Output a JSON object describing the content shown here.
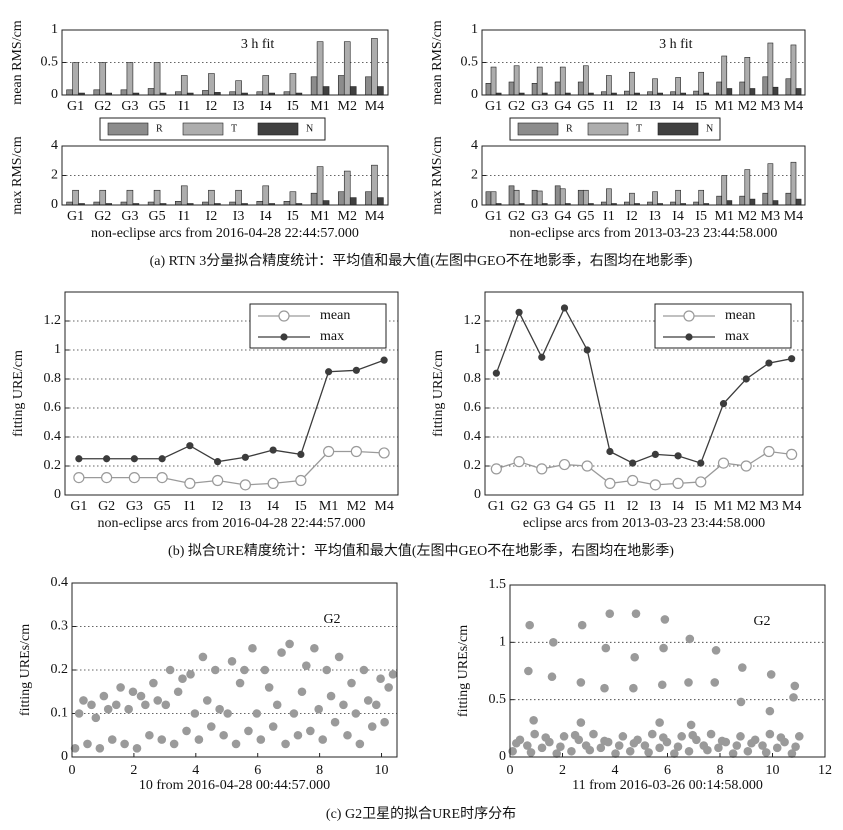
{
  "captions": [
    "(a) RTN 3分量拟合精度统计：平均值和最大值(左图中GEO不在地影季，右图均在地影季)",
    "(b) 拟合URE精度统计：平均值和最大值(左图中GEO不在地影季，右图均在地影季)",
    "(c) G2卫星的拟合URE时序分布"
  ],
  "chart_data": [
    {
      "type": "bar",
      "ylabel": "mean RMS/cm",
      "annotation": "3 h fit",
      "legend": "below",
      "grid": true,
      "categories": [
        "G1",
        "G2",
        "G3",
        "G5",
        "I1",
        "I2",
        "I3",
        "I4",
        "I5",
        "M1",
        "M2",
        "M4"
      ],
      "ylim": [
        0,
        1
      ],
      "yticks": [
        0,
        0.5,
        1
      ],
      "series": [
        {
          "name": "R",
          "color": "#8c8c8c",
          "values": [
            0.08,
            0.08,
            0.08,
            0.1,
            0.05,
            0.07,
            0.05,
            0.05,
            0.05,
            0.28,
            0.3,
            0.28
          ]
        },
        {
          "name": "T",
          "color": "#adadad",
          "values": [
            0.5,
            0.5,
            0.5,
            0.5,
            0.3,
            0.33,
            0.22,
            0.3,
            0.33,
            0.82,
            0.82,
            0.87
          ]
        },
        {
          "name": "N",
          "color": "#404040",
          "values": [
            0.03,
            0.03,
            0.03,
            0.03,
            0.03,
            0.04,
            0.03,
            0.03,
            0.03,
            0.13,
            0.13,
            0.13
          ]
        }
      ]
    },
    {
      "type": "bar",
      "ylabel": "max RMS/cm",
      "xlabel": "non-eclipse arcs from 2016-04-28 22:44:57.000",
      "grid": true,
      "categories": [
        "G1",
        "G2",
        "G3",
        "G5",
        "I1",
        "I2",
        "I3",
        "I4",
        "I5",
        "M1",
        "M2",
        "M4"
      ],
      "ylim": [
        0,
        4
      ],
      "yticks": [
        0,
        2,
        4
      ],
      "series": [
        {
          "color": "#8c8c8c",
          "values": [
            0.2,
            0.2,
            0.2,
            0.2,
            0.25,
            0.2,
            0.2,
            0.25,
            0.25,
            0.8,
            0.9,
            0.9
          ]
        },
        {
          "color": "#adadad",
          "values": [
            1,
            1,
            1,
            1,
            1.3,
            1,
            1,
            1.3,
            0.9,
            2.6,
            2.3,
            2.7
          ]
        },
        {
          "color": "#404040",
          "values": [
            0.1,
            0.1,
            0.1,
            0.1,
            0.1,
            0.1,
            0.1,
            0.1,
            0.1,
            0.3,
            0.5,
            0.5
          ]
        }
      ]
    },
    {
      "type": "bar",
      "ylabel": "mean RMS/cm",
      "annotation": "3 h fit",
      "legend": "below",
      "grid": true,
      "categories": [
        "G1",
        "G2",
        "G3",
        "G4",
        "G5",
        "I1",
        "I2",
        "I3",
        "I4",
        "I5",
        "M1",
        "M2",
        "M3",
        "M4"
      ],
      "ylim": [
        0,
        1
      ],
      "yticks": [
        0,
        0.5,
        1
      ],
      "series": [
        {
          "name": "R",
          "color": "#8c8c8c",
          "values": [
            0.18,
            0.2,
            0.18,
            0.2,
            0.2,
            0.05,
            0.06,
            0.05,
            0.05,
            0.06,
            0.2,
            0.2,
            0.28,
            0.25
          ]
        },
        {
          "name": "T",
          "color": "#adadad",
          "values": [
            0.43,
            0.45,
            0.43,
            0.43,
            0.45,
            0.3,
            0.35,
            0.25,
            0.27,
            0.35,
            0.6,
            0.58,
            0.8,
            0.77
          ]
        },
        {
          "name": "N",
          "color": "#404040",
          "values": [
            0.03,
            0.03,
            0.03,
            0.03,
            0.03,
            0.03,
            0.03,
            0.03,
            0.03,
            0.03,
            0.1,
            0.1,
            0.12,
            0.1
          ]
        }
      ]
    },
    {
      "type": "bar",
      "ylabel": "max RMS/cm",
      "xlabel": "non-eclipse arcs from 2013-03-23 23:44:58.000",
      "grid": true,
      "categories": [
        "G1",
        "G2",
        "G3",
        "G4",
        "G5",
        "I1",
        "I2",
        "I3",
        "I4",
        "I5",
        "M1",
        "M2",
        "M3",
        "M4"
      ],
      "ylim": [
        0,
        4
      ],
      "yticks": [
        0,
        2,
        4
      ],
      "series": [
        {
          "color": "#8c8c8c",
          "values": [
            0.9,
            1.3,
            1.0,
            1.3,
            1.0,
            0.2,
            0.2,
            0.2,
            0.2,
            0.2,
            0.6,
            0.6,
            0.8,
            0.8
          ]
        },
        {
          "color": "#adadad",
          "values": [
            0.9,
            1.0,
            0.95,
            1.1,
            1.0,
            1.1,
            0.8,
            0.9,
            1.0,
            1.0,
            2.0,
            2.4,
            2.8,
            2.9
          ]
        },
        {
          "color": "#404040",
          "values": [
            0.1,
            0.1,
            0.1,
            0.1,
            0.1,
            0.1,
            0.1,
            0.1,
            0.1,
            0.1,
            0.3,
            0.4,
            0.3,
            0.4
          ]
        }
      ]
    },
    {
      "type": "line",
      "ylabel": "fitting URE/cm",
      "xlabel": "non-eclipse arcs from 2016-04-28 22:44:57.000",
      "legend": "upper right",
      "grid": true,
      "categories": [
        "G1",
        "G2",
        "G3",
        "G5",
        "I1",
        "I2",
        "I3",
        "I4",
        "I5",
        "M1",
        "M2",
        "M4"
      ],
      "ylim": [
        0,
        1.4
      ],
      "yticks": [
        0,
        0.2,
        0.4,
        0.6,
        0.8,
        1,
        1.2
      ],
      "series": [
        {
          "name": "mean",
          "color": "#9a9a9a",
          "marker": "open-circle",
          "values": [
            0.12,
            0.12,
            0.12,
            0.12,
            0.08,
            0.1,
            0.07,
            0.08,
            0.1,
            0.3,
            0.3,
            0.29
          ]
        },
        {
          "name": "max",
          "color": "#3c3c3c",
          "marker": "filled-circle",
          "values": [
            0.25,
            0.25,
            0.25,
            0.25,
            0.34,
            0.23,
            0.26,
            0.31,
            0.28,
            0.85,
            0.86,
            0.93
          ]
        }
      ]
    },
    {
      "type": "line",
      "ylabel": "fitting URE/cm",
      "xlabel": "eclipse arcs from 2013-03-23 23:44:58.000",
      "legend": "upper right",
      "grid": true,
      "categories": [
        "G1",
        "G2",
        "G3",
        "G4",
        "G5",
        "I1",
        "I2",
        "I3",
        "I4",
        "I5",
        "M1",
        "M2",
        "M3",
        "M4"
      ],
      "ylim": [
        0,
        1.4
      ],
      "yticks": [
        0,
        0.2,
        0.4,
        0.6,
        0.8,
        1,
        1.2
      ],
      "series": [
        {
          "name": "mean",
          "color": "#9a9a9a",
          "marker": "open-circle",
          "values": [
            0.18,
            0.23,
            0.18,
            0.21,
            0.2,
            0.08,
            0.1,
            0.07,
            0.08,
            0.09,
            0.22,
            0.2,
            0.3,
            0.28
          ]
        },
        {
          "name": "max",
          "color": "#3c3c3c",
          "marker": "filled-circle",
          "values": [
            0.84,
            1.26,
            0.95,
            1.29,
            1.0,
            0.3,
            0.22,
            0.28,
            0.27,
            0.22,
            0.63,
            0.8,
            0.91,
            0.94
          ]
        }
      ]
    },
    {
      "type": "scatter",
      "ylabel": "fitting UREs/cm",
      "xlabel": "10 from 2016-04-28 00:44:57.000",
      "annotation": "G2",
      "grid": true,
      "color": "#9a9a9a",
      "xlim": [
        0,
        10.5
      ],
      "xticks": [
        0,
        2,
        4,
        6,
        8,
        10
      ],
      "ylim": [
        0,
        0.4
      ],
      "yticks": [
        0,
        0.1,
        0.2,
        0.3,
        0.4
      ],
      "x": [
        0.1,
        0.23,
        0.37,
        0.5,
        0.63,
        0.77,
        0.9,
        1.03,
        1.17,
        1.3,
        1.43,
        1.57,
        1.7,
        1.83,
        1.97,
        2.1,
        2.23,
        2.37,
        2.5,
        2.63,
        2.77,
        2.9,
        3.03,
        3.17,
        3.3,
        3.43,
        3.57,
        3.7,
        3.83,
        3.97,
        4.1,
        4.23,
        4.37,
        4.5,
        4.63,
        4.77,
        4.9,
        5.03,
        5.17,
        5.3,
        5.43,
        5.57,
        5.7,
        5.83,
        5.97,
        6.1,
        6.23,
        6.37,
        6.5,
        6.63,
        6.77,
        6.9,
        7.03,
        7.17,
        7.3,
        7.43,
        7.57,
        7.7,
        7.83,
        7.97,
        8.1,
        8.23,
        8.37,
        8.5,
        8.63,
        8.77,
        8.9,
        9.03,
        9.17,
        9.3,
        9.43,
        9.57,
        9.7,
        9.83,
        9.97,
        10.1,
        10.23,
        10.37
      ],
      "values": [
        0.02,
        0.1,
        0.13,
        0.03,
        0.12,
        0.09,
        0.02,
        0.14,
        0.11,
        0.04,
        0.12,
        0.16,
        0.03,
        0.11,
        0.15,
        0.02,
        0.14,
        0.12,
        0.05,
        0.17,
        0.13,
        0.04,
        0.12,
        0.2,
        0.03,
        0.15,
        0.18,
        0.06,
        0.19,
        0.1,
        0.04,
        0.23,
        0.13,
        0.07,
        0.2,
        0.11,
        0.05,
        0.1,
        0.22,
        0.03,
        0.17,
        0.2,
        0.06,
        0.25,
        0.1,
        0.04,
        0.2,
        0.16,
        0.07,
        0.12,
        0.24,
        0.03,
        0.26,
        0.1,
        0.05,
        0.15,
        0.21,
        0.06,
        0.25,
        0.11,
        0.04,
        0.2,
        0.14,
        0.08,
        0.23,
        0.12,
        0.05,
        0.17,
        0.1,
        0.03,
        0.2,
        0.13,
        0.07,
        0.12,
        0.18,
        0.08,
        0.16,
        0.19
      ]
    },
    {
      "type": "scatter",
      "ylabel": "fitting UREs/cm",
      "xlabel": "11 from 2016-03-26 00:14:58.000",
      "annotation": "G2",
      "grid": true,
      "color": "#9a9a9a",
      "xlim": [
        0,
        12
      ],
      "xticks": [
        0,
        2,
        4,
        6,
        8,
        10,
        12
      ],
      "ylim": [
        0,
        1.5
      ],
      "yticks": [
        0,
        0.5,
        1,
        1.5
      ],
      "x": [
        0.1,
        0.38,
        0.66,
        0.94,
        1.22,
        1.5,
        1.78,
        2.06,
        2.34,
        2.62,
        2.9,
        3.18,
        3.46,
        3.74,
        4.02,
        4.3,
        4.58,
        4.86,
        5.14,
        5.42,
        5.7,
        5.98,
        6.26,
        6.54,
        6.82,
        7.1,
        7.38,
        7.66,
        7.94,
        8.22,
        8.5,
        8.78,
        9.06,
        9.34,
        9.62,
        9.9,
        10.18,
        10.46,
        10.74,
        11.02,
        0.24,
        0.8,
        1.36,
        1.92,
        2.48,
        3.04,
        3.6,
        4.16,
        4.72,
        5.28,
        5.84,
        6.4,
        6.96,
        7.52,
        8.08,
        8.64,
        9.2,
        9.76,
        10.32,
        10.88,
        0.7,
        0.75,
        1.6,
        1.65,
        2.7,
        2.75,
        3.6,
        3.65,
        3.8,
        4.7,
        4.75,
        4.8,
        5.8,
        5.85,
        5.9,
        6.8,
        6.85,
        7.8,
        7.85,
        8.8,
        8.85,
        9.9,
        9.95,
        10.8,
        10.85,
        0.9,
        2.7,
        5.7,
        6.9
      ],
      "values": [
        0.05,
        0.15,
        0.1,
        0.2,
        0.08,
        0.13,
        0.03,
        0.18,
        0.05,
        0.15,
        0.1,
        0.2,
        0.08,
        0.13,
        0.03,
        0.18,
        0.05,
        0.15,
        0.1,
        0.2,
        0.08,
        0.13,
        0.03,
        0.18,
        0.05,
        0.15,
        0.1,
        0.2,
        0.08,
        0.13,
        0.03,
        0.18,
        0.05,
        0.15,
        0.1,
        0.2,
        0.08,
        0.13,
        0.03,
        0.18,
        0.12,
        0.04,
        0.17,
        0.09,
        0.19,
        0.06,
        0.14,
        0.1,
        0.12,
        0.04,
        0.17,
        0.09,
        0.19,
        0.06,
        0.14,
        0.1,
        0.12,
        0.04,
        0.17,
        0.09,
        0.75,
        1.15,
        0.7,
        1.0,
        0.65,
        1.15,
        0.6,
        0.95,
        1.25,
        0.6,
        0.87,
        1.25,
        0.63,
        0.95,
        1.2,
        0.65,
        1.03,
        0.65,
        0.93,
        0.48,
        0.78,
        0.4,
        0.72,
        0.52,
        0.62,
        0.32,
        0.3,
        0.3,
        0.28
      ]
    }
  ]
}
